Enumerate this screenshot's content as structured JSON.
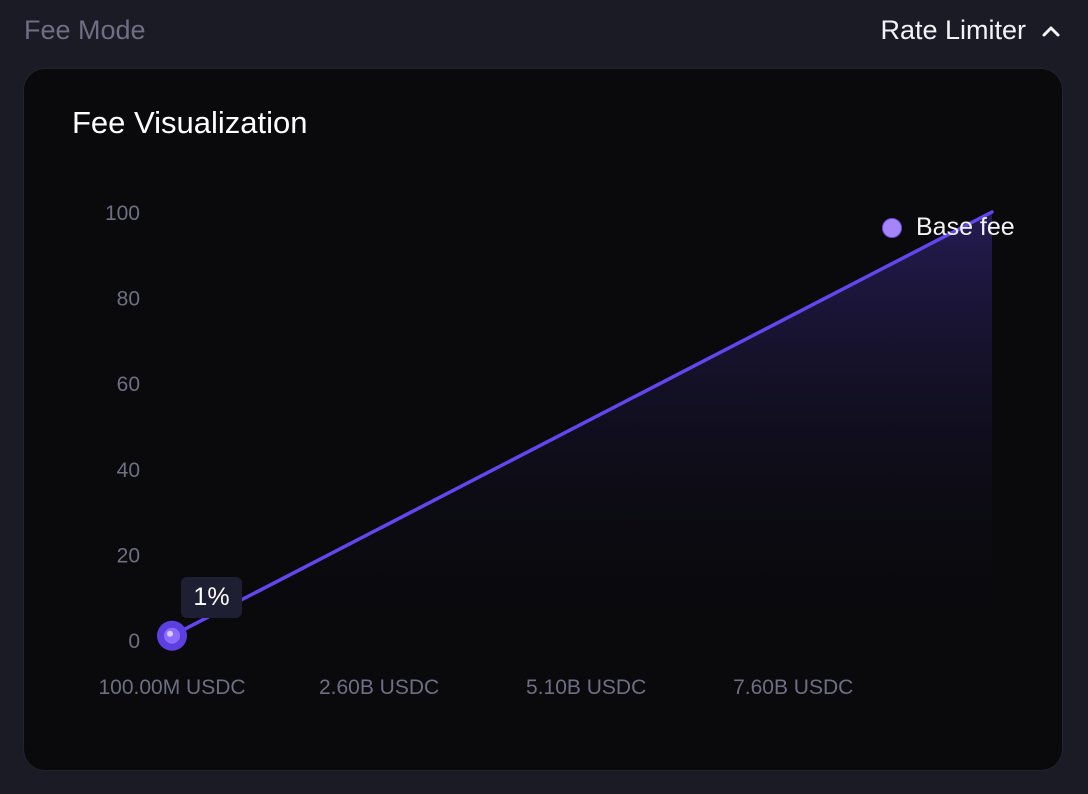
{
  "header": {
    "fee_mode_label": "Fee Mode",
    "rate_limiter_label": "Rate Limiter",
    "rate_limiter_icon": "chevron-up-icon"
  },
  "card": {
    "title": "Fee Visualization"
  },
  "tooltip": {
    "value": "1%"
  },
  "colors": {
    "line": "#6446f0",
    "legend_dot": "#a685fa",
    "point_outer": "#5c3fe0",
    "point_inner": "#8c6cff",
    "axis_text": "#6e6e84",
    "fill_top": "#3a2a8a"
  },
  "chart_data": {
    "type": "area",
    "title": "",
    "xlabel": "",
    "ylabel": "",
    "x_tick_labels": [
      "100.00M USDC",
      "2.60B USDC",
      "5.10B USDC",
      "7.60B USDC"
    ],
    "x_tick_values": [
      100000000,
      2600000000,
      5100000000,
      7600000000
    ],
    "y_ticks": [
      0,
      20,
      40,
      60,
      80,
      100
    ],
    "ylim": [
      0,
      100
    ],
    "xlim": [
      100000000,
      10000000000
    ],
    "grid": false,
    "legend_position": "top-right",
    "series": [
      {
        "name": "Base fee",
        "x": [
          100000000,
          10000000000
        ],
        "values": [
          1,
          100
        ]
      }
    ],
    "highlighted_point": {
      "x": 100000000,
      "y": 1,
      "label": "1%"
    }
  }
}
